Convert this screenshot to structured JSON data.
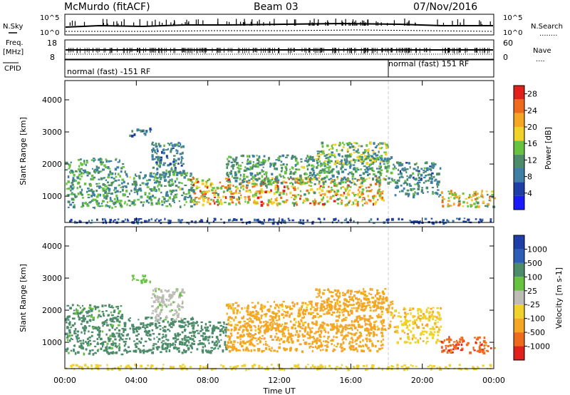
{
  "header": {
    "station": "McMurdo (fitACF)",
    "beam": "Beam 03",
    "date": "07/Nov/2016"
  },
  "panels": {
    "nsky_label": "N.Sky",
    "nsearch_label": "N.Search",
    "nsearch_marks": "........",
    "noise_ticks": [
      "10^5",
      "10^0"
    ],
    "freq_label_1": "Freq.",
    "freq_label_2": "[MHz]",
    "freq_ticks": [
      "18",
      "8"
    ],
    "nave_label": "Nave",
    "nave_marks": "....",
    "nave_ticks": [
      "60",
      "0"
    ],
    "cpid_label": "CPID",
    "cpid_left": "normal (fast) -151 RF",
    "cpid_right": "normal (fast) 151 RF",
    "cpid_change_hour": 18.1
  },
  "colors": {
    "power": [
      "#1a1aff",
      "#1e3fa8",
      "#3e7fa3",
      "#4c8c6a",
      "#66c23f",
      "#f0d22a",
      "#f5a623",
      "#ee6b1e",
      "#e0201a"
    ],
    "velocity": [
      "#1e3fa8",
      "#2e5fb8",
      "#4c8c6a",
      "#66c23f",
      "#bdbdb6",
      "#f0d22a",
      "#f5a623",
      "#ee6b1e",
      "#e0201a"
    ]
  },
  "chart_data": [
    {
      "type": "heatmap",
      "title": "Power",
      "xlabel": "Time UT",
      "ylabel": "Slant Range [km]",
      "x_ticks": [
        "00:00",
        "04:00",
        "08:00",
        "12:00",
        "16:00",
        "20:00",
        "00:00"
      ],
      "xlim_hours": [
        0,
        24
      ],
      "ylim": [
        180,
        4600
      ],
      "y_ticks": [
        1000,
        2000,
        3000,
        4000
      ],
      "colorbar": {
        "label": "Power [dB]",
        "ticks": [
          4,
          8,
          12,
          16,
          20,
          24,
          28
        ],
        "range": [
          0,
          30
        ]
      },
      "echo_regions": [
        {
          "t0": 0.0,
          "t1": 3.2,
          "r0": 650,
          "r1": 2200,
          "value": 12
        },
        {
          "t0": 3.2,
          "t1": 7.2,
          "r0": 700,
          "r1": 1800,
          "value": 12
        },
        {
          "t0": 4.8,
          "t1": 6.6,
          "r0": 1700,
          "r1": 2700,
          "value": 10
        },
        {
          "t0": 3.6,
          "t1": 4.8,
          "r0": 2900,
          "r1": 3150,
          "value": 8
        },
        {
          "t0": 7.0,
          "t1": 17.8,
          "r0": 750,
          "r1": 1600,
          "value": 20
        },
        {
          "t0": 9.0,
          "t1": 18.4,
          "r0": 1400,
          "r1": 2300,
          "value": 12
        },
        {
          "t0": 14.0,
          "t1": 18.0,
          "r0": 2000,
          "r1": 2700,
          "value": 14
        },
        {
          "t0": 18.4,
          "t1": 21.0,
          "r0": 1000,
          "r1": 2100,
          "value": 10
        },
        {
          "t0": 21.0,
          "t1": 24.0,
          "r0": 700,
          "r1": 1200,
          "value": 18
        },
        {
          "t0": 0.0,
          "t1": 24.0,
          "r0": 180,
          "r1": 330,
          "value": 6
        }
      ]
    },
    {
      "type": "heatmap",
      "title": "Velocity",
      "xlabel": "Time UT",
      "ylabel": "Slant Range [km]",
      "x_ticks": [
        "00:00",
        "04:00",
        "08:00",
        "12:00",
        "16:00",
        "20:00",
        "00:00"
      ],
      "xlim_hours": [
        0,
        24
      ],
      "ylim": [
        180,
        4600
      ],
      "y_ticks": [
        1000,
        2000,
        3000,
        4000
      ],
      "colorbar": {
        "label": "Velocity [m s-1]",
        "ticks": [
          "1000",
          "500",
          "100",
          "25",
          "-25",
          "-100",
          "-500",
          "-1000"
        ]
      },
      "echo_regions": [
        {
          "t0": 0.0,
          "t1": 3.2,
          "r0": 650,
          "r1": 2200,
          "value": 150
        },
        {
          "t0": 3.2,
          "t1": 7.2,
          "r0": 700,
          "r1": 1800,
          "value": 200
        },
        {
          "t0": 4.8,
          "t1": 6.6,
          "r0": 1700,
          "r1": 2700,
          "value": 20
        },
        {
          "t0": 3.6,
          "t1": 4.8,
          "r0": 2900,
          "r1": 3150,
          "value": 50
        },
        {
          "t0": 7.0,
          "t1": 9.0,
          "r0": 700,
          "r1": 1700,
          "value": 200
        },
        {
          "t0": 9.0,
          "t1": 17.8,
          "r0": 750,
          "r1": 1600,
          "value": -300
        },
        {
          "t0": 9.0,
          "t1": 18.4,
          "r0": 1400,
          "r1": 2300,
          "value": -150
        },
        {
          "t0": 14.0,
          "t1": 18.0,
          "r0": 2000,
          "r1": 2700,
          "value": -300
        },
        {
          "t0": 18.4,
          "t1": 21.0,
          "r0": 1000,
          "r1": 2100,
          "value": -80
        },
        {
          "t0": 21.0,
          "t1": 24.0,
          "r0": 700,
          "r1": 1200,
          "value": -800
        },
        {
          "t0": 0.0,
          "t1": 24.0,
          "r0": 180,
          "r1": 330,
          "value": -60
        }
      ]
    }
  ]
}
